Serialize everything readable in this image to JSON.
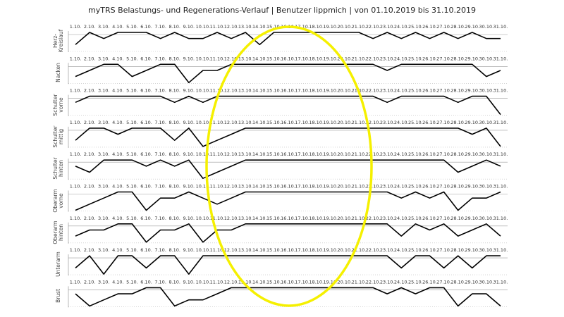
{
  "title": "myTRS Belastungs- und Regenerations-Verlauf | Benutzer lippmich | von 01.10.2019 bis 31.10.2019",
  "chart_data": [
    {
      "type": "line",
      "label": "Herz-Kreislauf",
      "color": "#000000",
      "ylim": [
        0,
        3
      ],
      "categories": [
        "1.10.",
        "2.10.",
        "3.10.",
        "4.10.",
        "5.10.",
        "6.10.",
        "7.10.",
        "8.10.",
        "9.10.",
        "10.10.",
        "11.10.",
        "12.10.",
        "13.10.",
        "14.10.",
        "15.10.",
        "16.10.",
        "17.10.",
        "18.10.",
        "19.10.",
        "20.10.",
        "21.10.",
        "22.10.",
        "23.10.",
        "24.10.",
        "25.10.",
        "26.10.",
        "27.10.",
        "28.10.",
        "29.10.",
        "30.10.",
        "31.10."
      ],
      "values": [
        1,
        3,
        2,
        3,
        3,
        3,
        2,
        3,
        2,
        2,
        3,
        2,
        3,
        1,
        3,
        3,
        3,
        3,
        3,
        3,
        3,
        2,
        3,
        2,
        3,
        2,
        3,
        2,
        3,
        2,
        2
      ]
    },
    {
      "type": "line",
      "label": "Nacken",
      "color": "#000000",
      "ylim": [
        0,
        3
      ],
      "categories": [
        "1.10.",
        "2.10.",
        "3.10.",
        "4.10.",
        "5.10.",
        "6.10.",
        "7.10.",
        "8.10.",
        "9.10.",
        "10.10.",
        "11.10.",
        "12.10.",
        "13.10.",
        "14.10.",
        "15.10.",
        "16.10.",
        "17.10.",
        "18.10.",
        "19.10.",
        "20.10.",
        "21.10.",
        "22.10.",
        "23.10.",
        "24.10.",
        "25.10.",
        "26.10.",
        "27.10.",
        "28.10.",
        "29.10.",
        "30.10.",
        "31.10."
      ],
      "values": [
        1,
        2,
        3,
        3,
        1,
        2,
        3,
        3,
        0,
        2,
        2,
        3,
        3,
        3,
        3,
        3,
        3,
        3,
        3,
        3,
        3,
        3,
        2,
        3,
        3,
        3,
        3,
        3,
        3,
        1,
        2
      ]
    },
    {
      "type": "line",
      "label": "Schulter vorne",
      "color": "#000000",
      "ylim": [
        0,
        3
      ],
      "categories": [
        "1.10.",
        "2.10.",
        "3.10.",
        "4.10.",
        "5.10.",
        "6.10.",
        "7.10.",
        "8.10.",
        "9.10.",
        "10.10.",
        "11.10.",
        "12.10.",
        "13.10.",
        "14.10.",
        "15.10.",
        "16.10.",
        "17.10.",
        "18.10.",
        "19.10.",
        "20.10.",
        "21.10.",
        "22.10.",
        "23.10.",
        "24.10.",
        "25.10.",
        "26.10.",
        "27.10.",
        "28.10.",
        "29.10.",
        "30.10.",
        "31.10."
      ],
      "values": [
        2,
        3,
        3,
        3,
        3,
        3,
        3,
        2,
        3,
        2,
        3,
        3,
        3,
        3,
        3,
        3,
        3,
        3,
        3,
        3,
        3,
        3,
        2,
        3,
        3,
        3,
        3,
        2,
        3,
        3,
        0
      ]
    },
    {
      "type": "line",
      "label": "Schulter mittig",
      "color": "#000000",
      "ylim": [
        0,
        3
      ],
      "categories": [
        "1.10.",
        "2.10.",
        "3.10.",
        "4.10.",
        "5.10.",
        "6.10.",
        "7.10.",
        "8.10.",
        "9.10.",
        "10.10.",
        "11.10.",
        "12.10.",
        "13.10.",
        "14.10.",
        "15.10.",
        "16.10.",
        "17.10.",
        "18.10.",
        "19.10.",
        "20.10.",
        "21.10.",
        "22.10.",
        "23.10.",
        "24.10.",
        "25.10.",
        "26.10.",
        "27.10.",
        "28.10.",
        "29.10.",
        "30.10.",
        "31.10."
      ],
      "values": [
        1,
        3,
        3,
        2,
        3,
        3,
        3,
        1,
        3,
        0,
        1,
        2,
        3,
        3,
        3,
        3,
        3,
        3,
        3,
        3,
        3,
        3,
        3,
        3,
        3,
        3,
        3,
        3,
        2,
        3,
        0
      ]
    },
    {
      "type": "line",
      "label": "Schulter hinten",
      "color": "#000000",
      "ylim": [
        0,
        3
      ],
      "categories": [
        "1.10.",
        "2.10.",
        "3.10.",
        "4.10.",
        "5.10.",
        "6.10.",
        "7.10.",
        "8.10.",
        "9.10.",
        "10.10.",
        "11.10.",
        "12.10.",
        "13.10.",
        "14.10.",
        "15.10.",
        "16.10.",
        "17.10.",
        "18.10.",
        "19.10.",
        "20.10.",
        "21.10.",
        "22.10.",
        "23.10.",
        "24.10.",
        "25.10.",
        "26.10.",
        "27.10.",
        "28.10.",
        "29.10.",
        "30.10.",
        "31.10."
      ],
      "values": [
        2,
        1,
        3,
        3,
        3,
        2,
        3,
        2,
        3,
        0,
        1,
        2,
        3,
        3,
        3,
        3,
        3,
        3,
        3,
        3,
        3,
        3,
        3,
        3,
        3,
        3,
        3,
        1,
        2,
        3,
        2
      ]
    },
    {
      "type": "line",
      "label": "Oberarm vorne",
      "color": "#000000",
      "ylim": [
        0,
        3
      ],
      "categories": [
        "1.10.",
        "2.10.",
        "3.10.",
        "4.10.",
        "5.10.",
        "6.10.",
        "7.10.",
        "8.10.",
        "9.10.",
        "10.10.",
        "11.10.",
        "12.10.",
        "13.10.",
        "14.10.",
        "15.10.",
        "16.10.",
        "17.10.",
        "18.10.",
        "19.10.",
        "20.10.",
        "21.10.",
        "22.10.",
        "23.10.",
        "24.10.",
        "25.10.",
        "26.10.",
        "27.10.",
        "28.10.",
        "29.10.",
        "30.10.",
        "31.10."
      ],
      "values": [
        0,
        1,
        2,
        3,
        3,
        0,
        2,
        2,
        3,
        2,
        1,
        2,
        3,
        3,
        3,
        3,
        3,
        3,
        3,
        3,
        3,
        3,
        3,
        2,
        3,
        2,
        3,
        0,
        2,
        2,
        3
      ]
    },
    {
      "type": "line",
      "label": "Oberarm hinten",
      "color": "#000000",
      "ylim": [
        0,
        3
      ],
      "categories": [
        "1.10.",
        "2.10.",
        "3.10.",
        "4.10.",
        "5.10.",
        "6.10.",
        "7.10.",
        "8.10.",
        "9.10.",
        "10.10.",
        "11.10.",
        "12.10.",
        "13.10.",
        "14.10.",
        "15.10.",
        "16.10.",
        "17.10.",
        "18.10.",
        "19.10.",
        "20.10.",
        "21.10.",
        "22.10.",
        "23.10.",
        "24.10.",
        "25.10.",
        "26.10.",
        "27.10.",
        "28.10.",
        "29.10.",
        "30.10.",
        "31.10."
      ],
      "values": [
        1,
        2,
        2,
        3,
        3,
        0,
        2,
        2,
        3,
        0,
        2,
        2,
        3,
        3,
        3,
        3,
        3,
        3,
        3,
        3,
        3,
        3,
        3,
        1,
        3,
        2,
        3,
        1,
        2,
        3,
        1
      ]
    },
    {
      "type": "line",
      "label": "Unterarm",
      "color": "#000000",
      "ylim": [
        0,
        3
      ],
      "categories": [
        "1.10.",
        "2.10.",
        "3.10.",
        "4.10.",
        "5.10.",
        "6.10.",
        "7.10.",
        "8.10.",
        "9.10.",
        "10.10.",
        "11.10.",
        "12.10.",
        "13.10.",
        "14.10.",
        "15.10.",
        "16.10.",
        "17.10.",
        "18.10.",
        "19.10.",
        "20.10.",
        "21.10.",
        "22.10.",
        "23.10.",
        "24.10.",
        "25.10.",
        "26.10.",
        "27.10.",
        "28.10.",
        "29.10.",
        "30.10.",
        "31.10."
      ],
      "values": [
        1,
        3,
        0,
        3,
        3,
        1,
        3,
        3,
        0,
        3,
        3,
        3,
        3,
        3,
        3,
        3,
        3,
        3,
        3,
        3,
        3,
        3,
        3,
        1,
        3,
        3,
        1,
        3,
        1,
        3,
        3
      ]
    },
    {
      "type": "line",
      "label": "Brust",
      "color": "#000000",
      "ylim": [
        0,
        3
      ],
      "categories": [
        "1.10.",
        "2.10.",
        "3.10.",
        "4.10.",
        "5.10.",
        "6.10.",
        "7.10.",
        "8.10.",
        "9.10.",
        "10.10.",
        "11.10.",
        "12.10.",
        "13.10.",
        "14.10.",
        "15.10.",
        "16.10.",
        "17.10.",
        "18.10.",
        "19.10.",
        "20.10.",
        "21.10.",
        "22.10.",
        "23.10.",
        "24.10.",
        "25.10.",
        "26.10.",
        "27.10.",
        "28.10.",
        "29.10.",
        "30.10.",
        "31.10."
      ],
      "values": [
        2,
        0,
        1,
        2,
        2,
        3,
        3,
        0,
        1,
        1,
        2,
        3,
        3,
        3,
        3,
        3,
        3,
        3,
        3,
        3,
        3,
        3,
        2,
        3,
        2,
        3,
        3,
        0,
        2,
        2,
        0
      ]
    }
  ]
}
